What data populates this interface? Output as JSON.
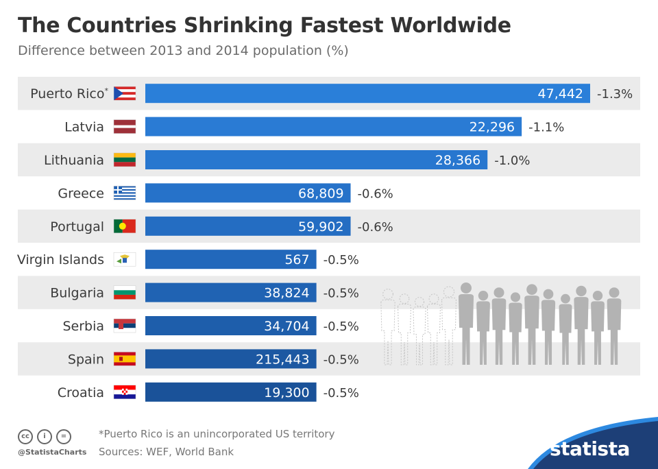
{
  "title": "The Countries Shrinking Fastest Worldwide",
  "subtitle": "Difference between 2013 and 2014 population (%)",
  "chart_data": {
    "type": "bar",
    "orientation": "horizontal",
    "title": "The Countries Shrinking Fastest Worldwide",
    "subtitle": "Difference between 2013 and 2014 population (%)",
    "categories": [
      "Puerto Rico",
      "Latvia",
      "Lithuania",
      "Greece",
      "Portugal",
      "Virgin Islands",
      "Bulgaria",
      "Serbia",
      "Spain",
      "Croatia"
    ],
    "category_marks": [
      "*",
      "",
      "",
      "",
      "",
      "",
      "",
      "",
      "",
      ""
    ],
    "percent_change": [
      -1.3,
      -1.1,
      -1.0,
      -0.6,
      -0.6,
      -0.5,
      -0.5,
      -0.5,
      -0.5,
      -0.5
    ],
    "percent_labels": [
      "-1.3%",
      "-1.1%",
      "-1.0%",
      "-0.6%",
      "-0.6%",
      "-0.5%",
      "-0.5%",
      "-0.5%",
      "-0.5%",
      "-0.5%"
    ],
    "population_loss_labels": [
      "47,442",
      "22,296",
      "28,366",
      "68,809",
      "59,902",
      "567",
      "38,824",
      "34,704",
      "215,443",
      "19,300"
    ],
    "bar_colors": [
      "#2a7fd9",
      "#2a7bd4",
      "#2877cf",
      "#2672c9",
      "#246dc2",
      "#2268bb",
      "#2063b3",
      "#1e5eab",
      "#1c58a2",
      "#1a5299"
    ],
    "xlim": [
      0,
      -1.3
    ],
    "grid": false
  },
  "flags": [
    "puerto-rico-flag-icon",
    "latvia-flag-icon",
    "lithuania-flag-icon",
    "greece-flag-icon",
    "portugal-flag-icon",
    "virgin-islands-flag-icon",
    "bulgaria-flag-icon",
    "serbia-flag-icon",
    "spain-flag-icon",
    "croatia-flag-icon"
  ],
  "footer": {
    "note": "*Puerto Rico is an unincorporated US territory",
    "sources": "Sources: WEF, World Bank",
    "handle": "@StatistaCharts",
    "brand": "statista",
    "license_icons": [
      "cc",
      "i",
      "="
    ]
  }
}
